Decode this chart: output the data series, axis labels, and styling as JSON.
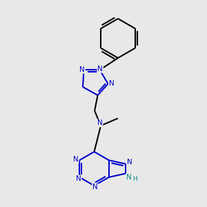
{
  "bg_color": "#e8e8e8",
  "blue": "#0000cc",
  "teal": "#008b8b",
  "black": "#000000",
  "lw": 1.5,
  "fs": 7.5,
  "dpi": 100,
  "figsize": [
    3.0,
    3.0
  ],
  "xlim": [
    0,
    10
  ],
  "ylim": [
    0,
    10
  ]
}
